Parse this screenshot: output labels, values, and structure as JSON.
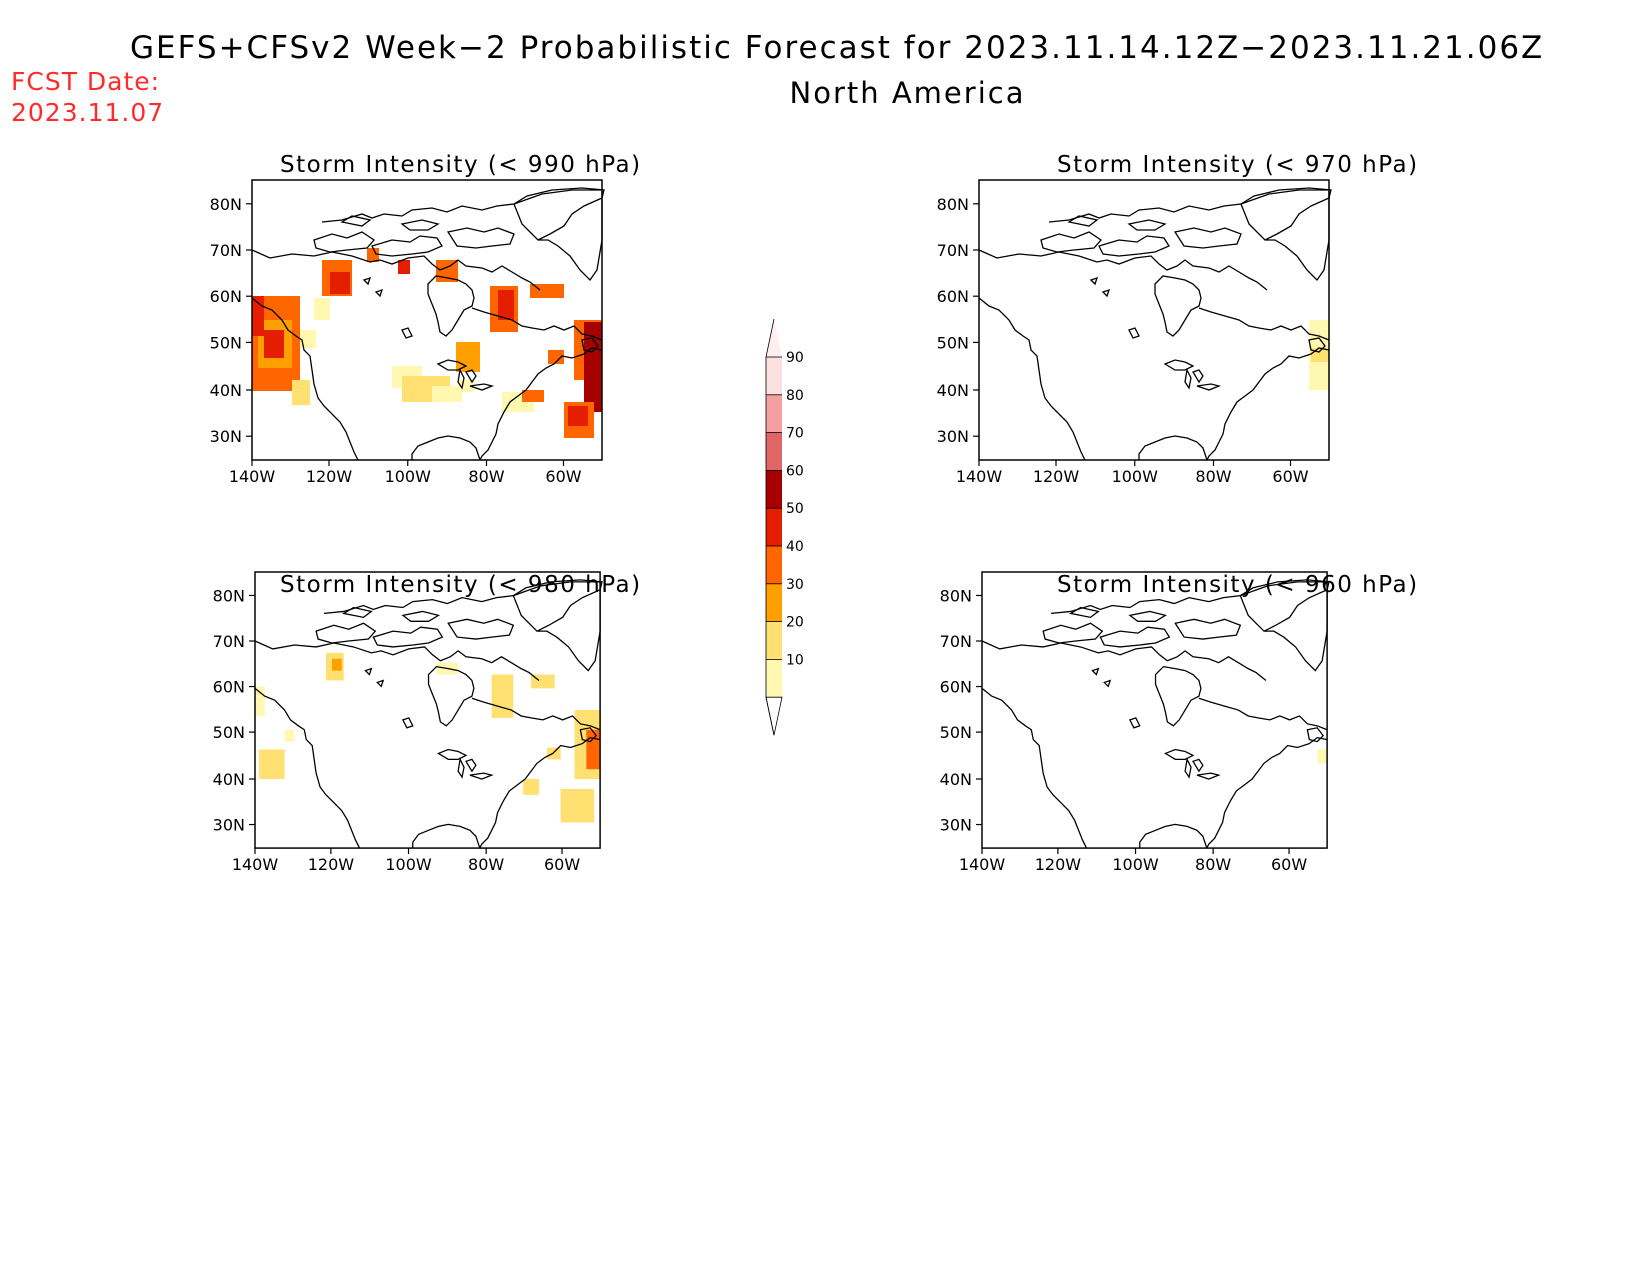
{
  "header": {
    "title": "GEFS+CFSv2 Week−2 Probabilistic Forecast for 2023.11.14.12Z−2023.11.21.06Z",
    "subtitle": "North America",
    "fcst_line1": "FCST Date:",
    "fcst_line2": "2023.11.07"
  },
  "axes": {
    "lat_labels": [
      "80N",
      "70N",
      "60N",
      "50N",
      "40N",
      "30N"
    ],
    "lon_labels": [
      "140W",
      "120W",
      "100W",
      "80W",
      "60W"
    ]
  },
  "panels": [
    {
      "title": "Storm Intensity (< 990 hPa)"
    },
    {
      "title": "Storm Intensity (< 970 hPa)"
    },
    {
      "title": "Storm Intensity (< 980 hPa)"
    },
    {
      "title": "Storm Intensity (< 960 hPa)"
    }
  ],
  "colorbar": {
    "labels": [
      "90",
      "80",
      "70",
      "60",
      "50",
      "40",
      "30",
      "20",
      "10"
    ],
    "colors": [
      "#fde0e0",
      "#f4a0a0",
      "#e06666",
      "#a60000",
      "#e61e00",
      "#ff6600",
      "#ffa000",
      "#ffe070",
      "#fff8b0"
    ]
  },
  "colors": {
    "c10": "#fff8b0",
    "c20": "#ffe070",
    "c30": "#ffa000",
    "c40": "#ff6600",
    "c50": "#e61e00",
    "c60": "#a60000",
    "c70": "#e06666"
  }
}
